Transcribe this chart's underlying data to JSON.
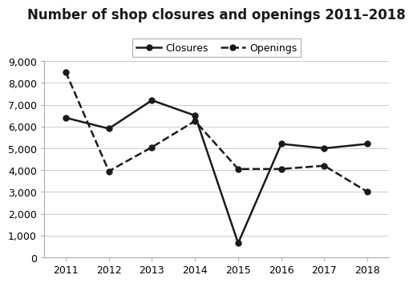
{
  "title": "Number of shop closures and openings 2011–2018",
  "years": [
    2011,
    2012,
    2013,
    2014,
    2015,
    2016,
    2017,
    2018
  ],
  "closures": [
    6400,
    5900,
    7200,
    6500,
    650,
    5200,
    5000,
    5200
  ],
  "openings": [
    8500,
    3950,
    5050,
    6250,
    4050,
    4050,
    4200,
    3000
  ],
  "ylim": [
    0,
    9000
  ],
  "yticks": [
    0,
    1000,
    2000,
    3000,
    4000,
    5000,
    6000,
    7000,
    8000,
    9000
  ],
  "ytick_labels": [
    "0",
    "1,000",
    "2,000",
    "3,000",
    "4,000",
    "5,000",
    "6,000",
    "7,000",
    "8,000",
    "9,000"
  ],
  "line_color": "#1a1a1a",
  "background_color": "#ffffff",
  "legend_closures": "Closures",
  "legend_openings": "Openings",
  "title_fontsize": 12,
  "axis_fontsize": 9,
  "legend_fontsize": 9
}
